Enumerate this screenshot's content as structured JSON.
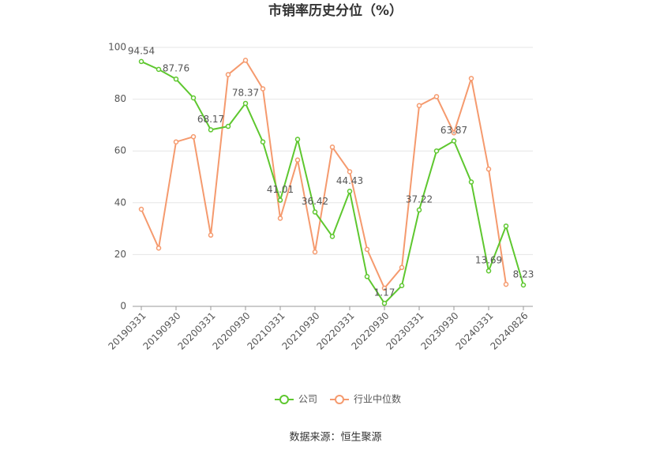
{
  "chart_data": {
    "type": "line",
    "title": "市销率历史分位（%）",
    "categories": [
      "20190331",
      null,
      "20190930",
      null,
      "20200331",
      null,
      "20200930",
      null,
      "20210331",
      null,
      "20210930",
      null,
      "20220331",
      null,
      "20220930",
      null,
      "20230331",
      null,
      "20230930",
      null,
      "20240331",
      null,
      "20240826"
    ],
    "series": [
      {
        "name": "公司",
        "color": "#5ec72f",
        "values": [
          94.54,
          91.5,
          87.76,
          80.5,
          68.17,
          69.5,
          78.37,
          63.5,
          41.01,
          64.5,
          36.42,
          27,
          44.43,
          11.5,
          1.17,
          8,
          37.22,
          60,
          63.87,
          48,
          13.69,
          31,
          8.23
        ],
        "value_labels": [
          "94.54",
          null,
          "87.76",
          null,
          "68.17",
          null,
          "78.37",
          null,
          "41.01",
          null,
          "36.42",
          null,
          "44.43",
          null,
          "1.17",
          null,
          "37.22",
          null,
          "63.87",
          null,
          "13.69",
          null,
          "8.23"
        ]
      },
      {
        "name": "行业中位数",
        "color": "#f59a6e",
        "values": [
          37.5,
          22.5,
          63.5,
          65.5,
          27.5,
          89.5,
          95,
          84,
          34,
          56.5,
          21,
          61.5,
          52,
          22,
          7,
          15,
          77.5,
          81,
          67,
          88,
          53,
          8.5,
          null
        ]
      }
    ],
    "ylim": [
      0,
      100
    ],
    "yticks": [
      0,
      20,
      40,
      60,
      80,
      100
    ],
    "grid": true,
    "legend": "bottom",
    "source": "数据来源：恒生聚源"
  }
}
